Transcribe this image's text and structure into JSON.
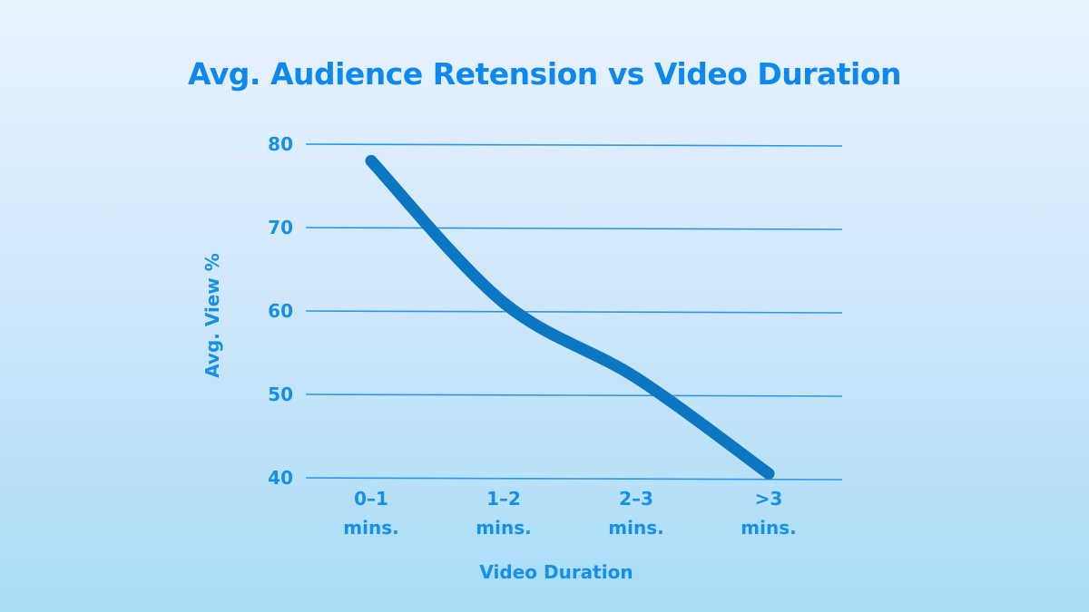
{
  "chart_data": {
    "type": "line",
    "title": "Avg. Audience Retension vs Video Duration",
    "xlabel": "Video Duration",
    "ylabel": "Avg. View %",
    "categories": [
      "0–1 mins.",
      "1–2 mins.",
      "2–3 mins.",
      ">3 mins."
    ],
    "values": [
      78,
      61,
      52,
      40.5
    ],
    "ylim": [
      40,
      80
    ],
    "yticks": [
      80,
      70,
      60,
      50,
      40
    ],
    "grid": true,
    "colors": {
      "title": "#0d88ee",
      "line": "#0b76c2",
      "grid": "#2b95e6",
      "labels": "#1490e8"
    }
  }
}
